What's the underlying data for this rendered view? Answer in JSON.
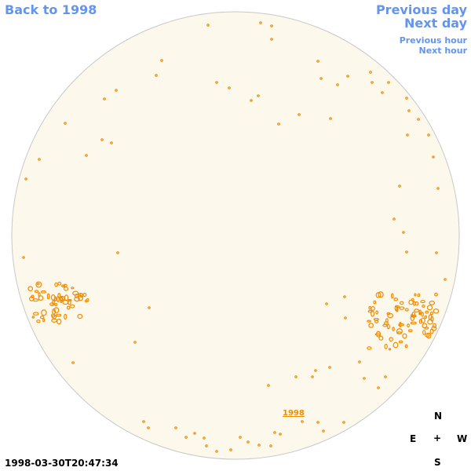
{
  "nav": {
    "back": "Back to 1998",
    "previous_day": "Previous day",
    "next_day": "Next day",
    "previous_hour": "Previous hour",
    "next_hour": "Next hour"
  },
  "timestamp": "1998-03-30T20:47:34",
  "year_link": "1998",
  "compass": {
    "north": "N",
    "east": "E",
    "west": "W",
    "south": "S",
    "center": "+"
  },
  "colors": {
    "disk": "#fdf8ec",
    "disk_edge": "#c8c8c8",
    "feature": "#f08c00",
    "nav": "#6495ed"
  }
}
